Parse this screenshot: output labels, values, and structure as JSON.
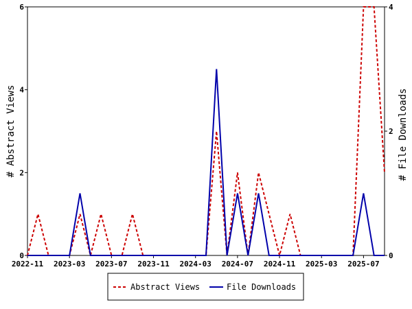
{
  "chart_data": {
    "type": "line",
    "x": [
      "2022-11",
      "2022-12",
      "2023-01",
      "2023-02",
      "2023-03",
      "2023-04",
      "2023-05",
      "2023-06",
      "2023-07",
      "2023-08",
      "2023-09",
      "2023-10",
      "2023-11",
      "2023-12",
      "2024-01",
      "2024-02",
      "2024-03",
      "2024-04",
      "2024-05",
      "2024-06",
      "2024-07",
      "2024-08",
      "2024-09",
      "2024-10",
      "2024-11",
      "2024-12",
      "2025-01",
      "2025-02",
      "2025-03",
      "2025-04",
      "2025-05",
      "2025-06",
      "2025-07",
      "2025-08",
      "2025-09"
    ],
    "x_tick_labels": [
      "2022-11",
      "2023-03",
      "2023-07",
      "2023-11",
      "2024-03",
      "2024-07",
      "2024-11",
      "2025-03",
      "2025-07"
    ],
    "series": [
      {
        "name": "Abstract Views",
        "axis": "left",
        "color": "#cc0000",
        "style": "dashed",
        "values": [
          0,
          1,
          0,
          0,
          0,
          1,
          0,
          1,
          0,
          0,
          1,
          0,
          0,
          0,
          0,
          0,
          0,
          0,
          3,
          0,
          2,
          0,
          2,
          1,
          0,
          1,
          0,
          0,
          0,
          0,
          0,
          0,
          6,
          6,
          2
        ]
      },
      {
        "name": "File Downloads",
        "axis": "right",
        "color": "#0000aa",
        "style": "solid",
        "values": [
          0,
          0,
          0,
          0,
          0,
          1,
          0,
          0,
          0,
          0,
          0,
          0,
          0,
          0,
          0,
          0,
          0,
          0,
          3,
          0,
          1,
          0,
          1,
          0,
          0,
          0,
          0,
          0,
          0,
          0,
          0,
          0,
          1,
          0,
          0
        ]
      }
    ],
    "ylabel": "# Abstract Views",
    "ylabel_right": "# File Downloads",
    "ylim": [
      0,
      6
    ],
    "ylim_right": [
      0,
      4
    ],
    "yticks": [
      "0",
      "2",
      "4",
      "6"
    ],
    "yticks_right": [
      "0",
      "2",
      "4"
    ],
    "grid": false,
    "legend_position": "bottom"
  }
}
